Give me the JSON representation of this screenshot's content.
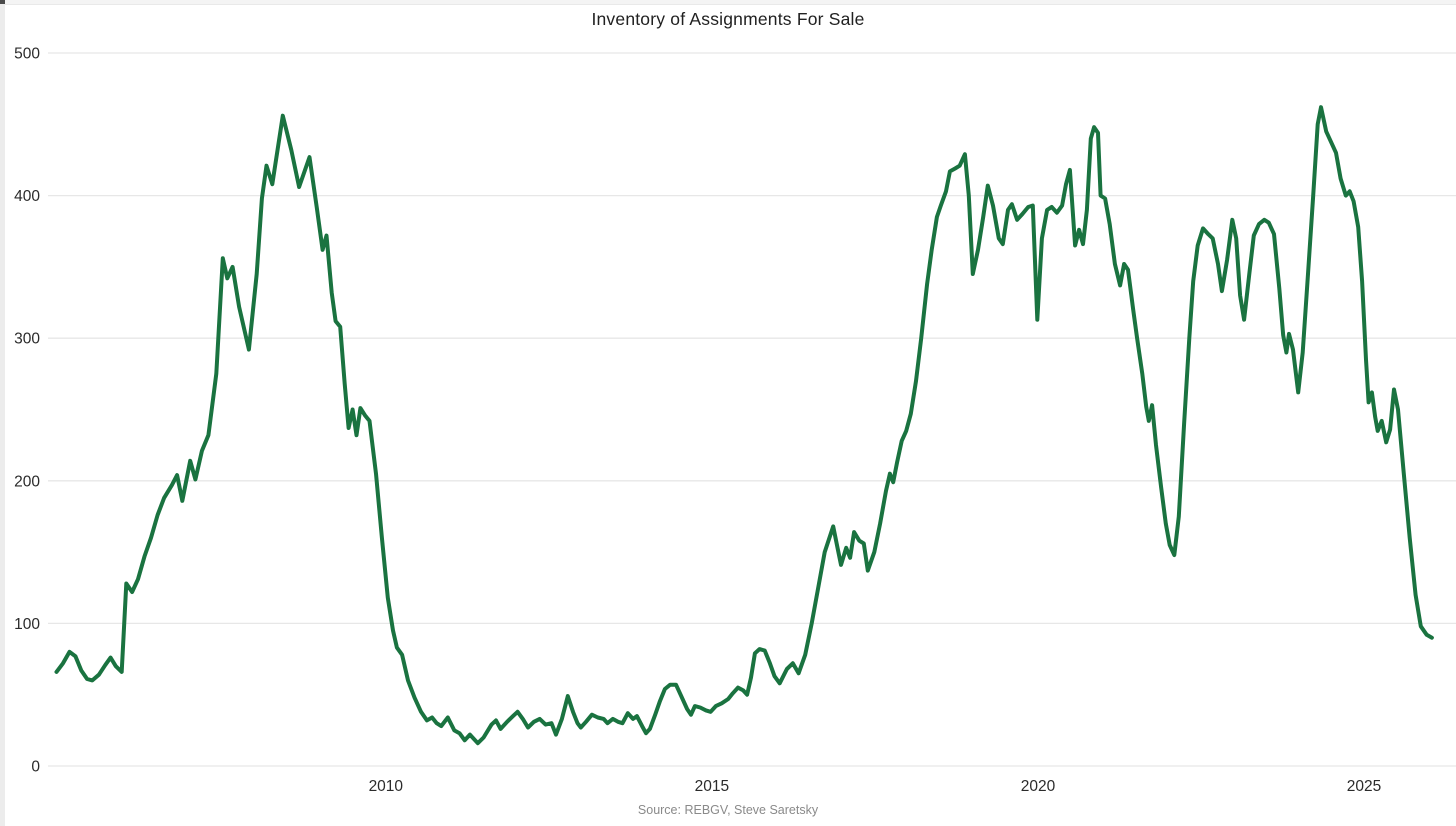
{
  "page": {
    "title": "Inventory of Assignments For Sale",
    "source_note": "Source: REBGV, Steve Saretsky"
  },
  "colors": {
    "line": "#1a7340",
    "gridline": "#e7e7e7",
    "tick_text": "#2b2b2b",
    "title_text": "#212121",
    "source_text": "#8a8a8a",
    "background": "#ffffff"
  },
  "chart_data": {
    "type": "line",
    "title": "Inventory of Assignments For Sale",
    "xlabel": "",
    "ylabel": "",
    "grid": true,
    "legend_position": "none",
    "ylim": [
      0,
      500
    ],
    "y_ticks": [
      0,
      100,
      200,
      300,
      400,
      500
    ],
    "y_tick_labels": [
      "0",
      "100",
      "200",
      "300",
      "400",
      "500"
    ],
    "x_ticks": [
      2010,
      2015,
      2020,
      2025
    ],
    "x_tick_labels": [
      "2010",
      "2015",
      "2020",
      "2025"
    ],
    "x_range": [
      2004.82,
      2026.41
    ],
    "series": [
      {
        "name": "Inventory of Assignments For Sale",
        "points": [
          [
            2004.95,
            66
          ],
          [
            2005.05,
            72
          ],
          [
            2005.15,
            80
          ],
          [
            2005.24,
            77
          ],
          [
            2005.33,
            67
          ],
          [
            2005.42,
            61
          ],
          [
            2005.5,
            60
          ],
          [
            2005.6,
            64
          ],
          [
            2005.7,
            71
          ],
          [
            2005.78,
            76
          ],
          [
            2005.86,
            70
          ],
          [
            2005.95,
            66
          ],
          [
            2006.02,
            128
          ],
          [
            2006.11,
            122
          ],
          [
            2006.2,
            131
          ],
          [
            2006.3,
            147
          ],
          [
            2006.4,
            160
          ],
          [
            2006.5,
            176
          ],
          [
            2006.6,
            188
          ],
          [
            2006.72,
            197
          ],
          [
            2006.8,
            204
          ],
          [
            2006.88,
            186
          ],
          [
            2007.0,
            214
          ],
          [
            2007.08,
            201
          ],
          [
            2007.18,
            221
          ],
          [
            2007.28,
            232
          ],
          [
            2007.4,
            275
          ],
          [
            2007.5,
            356
          ],
          [
            2007.57,
            342
          ],
          [
            2007.65,
            350
          ],
          [
            2007.75,
            322
          ],
          [
            2007.9,
            292
          ],
          [
            2008.02,
            345
          ],
          [
            2008.1,
            398
          ],
          [
            2008.17,
            421
          ],
          [
            2008.26,
            408
          ],
          [
            2008.42,
            456
          ],
          [
            2008.55,
            432
          ],
          [
            2008.67,
            406
          ],
          [
            2008.83,
            427
          ],
          [
            2008.94,
            392
          ],
          [
            2009.03,
            362
          ],
          [
            2009.09,
            372
          ],
          [
            2009.17,
            332
          ],
          [
            2009.23,
            312
          ],
          [
            2009.3,
            308
          ],
          [
            2009.37,
            268
          ],
          [
            2009.43,
            237
          ],
          [
            2009.49,
            250
          ],
          [
            2009.55,
            232
          ],
          [
            2009.61,
            251
          ],
          [
            2009.68,
            246
          ],
          [
            2009.75,
            242
          ],
          [
            2009.85,
            205
          ],
          [
            2009.94,
            160
          ],
          [
            2010.03,
            118
          ],
          [
            2010.11,
            95
          ],
          [
            2010.17,
            83
          ],
          [
            2010.25,
            78
          ],
          [
            2010.34,
            60
          ],
          [
            2010.44,
            48
          ],
          [
            2010.54,
            38
          ],
          [
            2010.63,
            32
          ],
          [
            2010.71,
            34
          ],
          [
            2010.78,
            30
          ],
          [
            2010.85,
            28
          ],
          [
            2010.95,
            34
          ],
          [
            2011.05,
            25
          ],
          [
            2011.13,
            23
          ],
          [
            2011.21,
            18
          ],
          [
            2011.29,
            22
          ],
          [
            2011.41,
            16
          ],
          [
            2011.5,
            20
          ],
          [
            2011.62,
            29
          ],
          [
            2011.69,
            32
          ],
          [
            2011.76,
            26
          ],
          [
            2011.86,
            31
          ],
          [
            2011.95,
            35
          ],
          [
            2012.02,
            38
          ],
          [
            2012.1,
            33
          ],
          [
            2012.18,
            27
          ],
          [
            2012.27,
            31
          ],
          [
            2012.36,
            33
          ],
          [
            2012.45,
            29
          ],
          [
            2012.54,
            30
          ],
          [
            2012.61,
            22
          ],
          [
            2012.7,
            33
          ],
          [
            2012.79,
            49
          ],
          [
            2012.87,
            38
          ],
          [
            2012.94,
            30
          ],
          [
            2012.99,
            27
          ],
          [
            2013.07,
            31
          ],
          [
            2013.16,
            36
          ],
          [
            2013.25,
            34
          ],
          [
            2013.34,
            33
          ],
          [
            2013.4,
            30
          ],
          [
            2013.48,
            33
          ],
          [
            2013.56,
            31
          ],
          [
            2013.63,
            30
          ],
          [
            2013.71,
            37
          ],
          [
            2013.79,
            33
          ],
          [
            2013.85,
            35
          ],
          [
            2013.93,
            28
          ],
          [
            2013.99,
            23
          ],
          [
            2014.05,
            26
          ],
          [
            2014.13,
            36
          ],
          [
            2014.2,
            45
          ],
          [
            2014.28,
            54
          ],
          [
            2014.36,
            57
          ],
          [
            2014.45,
            57
          ],
          [
            2014.52,
            50
          ],
          [
            2014.62,
            40
          ],
          [
            2014.68,
            36
          ],
          [
            2014.74,
            42
          ],
          [
            2014.82,
            41
          ],
          [
            2014.91,
            39
          ],
          [
            2014.98,
            38
          ],
          [
            2015.06,
            42
          ],
          [
            2015.15,
            44
          ],
          [
            2015.25,
            47
          ],
          [
            2015.32,
            51
          ],
          [
            2015.4,
            55
          ],
          [
            2015.48,
            53
          ],
          [
            2015.54,
            50
          ],
          [
            2015.6,
            62
          ],
          [
            2015.66,
            79
          ],
          [
            2015.73,
            82
          ],
          [
            2015.81,
            81
          ],
          [
            2015.89,
            72
          ],
          [
            2015.96,
            63
          ],
          [
            2016.04,
            58
          ],
          [
            2016.15,
            68
          ],
          [
            2016.24,
            72
          ],
          [
            2016.33,
            65
          ],
          [
            2016.43,
            78
          ],
          [
            2016.53,
            100
          ],
          [
            2016.63,
            125
          ],
          [
            2016.73,
            150
          ],
          [
            2016.86,
            168
          ],
          [
            2016.93,
            152
          ],
          [
            2016.98,
            141
          ],
          [
            2017.06,
            153
          ],
          [
            2017.12,
            146
          ],
          [
            2017.18,
            164
          ],
          [
            2017.26,
            158
          ],
          [
            2017.33,
            156
          ],
          [
            2017.39,
            137
          ],
          [
            2017.49,
            150
          ],
          [
            2017.58,
            170
          ],
          [
            2017.67,
            193
          ],
          [
            2017.73,
            205
          ],
          [
            2017.78,
            199
          ],
          [
            2017.84,
            213
          ],
          [
            2017.91,
            228
          ],
          [
            2017.98,
            235
          ],
          [
            2018.05,
            247
          ],
          [
            2018.13,
            270
          ],
          [
            2018.21,
            300
          ],
          [
            2018.3,
            338
          ],
          [
            2018.37,
            362
          ],
          [
            2018.45,
            385
          ],
          [
            2018.51,
            393
          ],
          [
            2018.59,
            403
          ],
          [
            2018.65,
            417
          ],
          [
            2018.73,
            419
          ],
          [
            2018.8,
            421
          ],
          [
            2018.88,
            429
          ],
          [
            2018.94,
            400
          ],
          [
            2019.0,
            345
          ],
          [
            2019.08,
            362
          ],
          [
            2019.16,
            385
          ],
          [
            2019.23,
            407
          ],
          [
            2019.31,
            393
          ],
          [
            2019.4,
            370
          ],
          [
            2019.46,
            366
          ],
          [
            2019.54,
            390
          ],
          [
            2019.6,
            394
          ],
          [
            2019.68,
            383
          ],
          [
            2019.76,
            387
          ],
          [
            2019.85,
            392
          ],
          [
            2019.92,
            393
          ],
          [
            2019.99,
            313
          ],
          [
            2020.06,
            370
          ],
          [
            2020.14,
            390
          ],
          [
            2020.21,
            392
          ],
          [
            2020.29,
            388
          ],
          [
            2020.37,
            393
          ],
          [
            2020.43,
            408
          ],
          [
            2020.49,
            418
          ],
          [
            2020.57,
            365
          ],
          [
            2020.63,
            376
          ],
          [
            2020.69,
            366
          ],
          [
            2020.75,
            390
          ],
          [
            2020.81,
            440
          ],
          [
            2020.86,
            448
          ],
          [
            2020.92,
            444
          ],
          [
            2020.96,
            400
          ],
          [
            2021.03,
            398
          ],
          [
            2021.1,
            380
          ],
          [
            2021.18,
            352
          ],
          [
            2021.26,
            337
          ],
          [
            2021.32,
            352
          ],
          [
            2021.38,
            348
          ],
          [
            2021.46,
            320
          ],
          [
            2021.52,
            300
          ],
          [
            2021.6,
            275
          ],
          [
            2021.66,
            252
          ],
          [
            2021.7,
            242
          ],
          [
            2021.75,
            253
          ],
          [
            2021.81,
            225
          ],
          [
            2021.89,
            195
          ],
          [
            2021.96,
            170
          ],
          [
            2022.02,
            155
          ],
          [
            2022.09,
            148
          ],
          [
            2022.16,
            175
          ],
          [
            2022.24,
            240
          ],
          [
            2022.32,
            300
          ],
          [
            2022.38,
            340
          ],
          [
            2022.45,
            365
          ],
          [
            2022.53,
            377
          ],
          [
            2022.61,
            373
          ],
          [
            2022.68,
            370
          ],
          [
            2022.76,
            352
          ],
          [
            2022.82,
            333
          ],
          [
            2022.9,
            355
          ],
          [
            2022.98,
            383
          ],
          [
            2023.04,
            370
          ],
          [
            2023.1,
            330
          ],
          [
            2023.16,
            313
          ],
          [
            2023.24,
            345
          ],
          [
            2023.31,
            372
          ],
          [
            2023.39,
            380
          ],
          [
            2023.47,
            383
          ],
          [
            2023.54,
            381
          ],
          [
            2023.62,
            373
          ],
          [
            2023.7,
            335
          ],
          [
            2023.76,
            302
          ],
          [
            2023.81,
            290
          ],
          [
            2023.85,
            303
          ],
          [
            2023.91,
            292
          ],
          [
            2023.99,
            262
          ],
          [
            2024.06,
            290
          ],
          [
            2024.14,
            345
          ],
          [
            2024.22,
            400
          ],
          [
            2024.29,
            450
          ],
          [
            2024.34,
            462
          ],
          [
            2024.42,
            445
          ],
          [
            2024.49,
            438
          ],
          [
            2024.57,
            430
          ],
          [
            2024.64,
            412
          ],
          [
            2024.72,
            400
          ],
          [
            2024.78,
            403
          ],
          [
            2024.84,
            396
          ],
          [
            2024.91,
            378
          ],
          [
            2024.97,
            340
          ],
          [
            2025.03,
            285
          ],
          [
            2025.07,
            255
          ],
          [
            2025.12,
            262
          ],
          [
            2025.17,
            245
          ],
          [
            2025.21,
            235
          ],
          [
            2025.27,
            242
          ],
          [
            2025.34,
            227
          ],
          [
            2025.4,
            236
          ],
          [
            2025.46,
            264
          ],
          [
            2025.52,
            250
          ],
          [
            2025.61,
            205
          ],
          [
            2025.7,
            160
          ],
          [
            2025.79,
            120
          ],
          [
            2025.87,
            98
          ],
          [
            2025.96,
            92
          ],
          [
            2026.04,
            90
          ]
        ]
      }
    ]
  }
}
